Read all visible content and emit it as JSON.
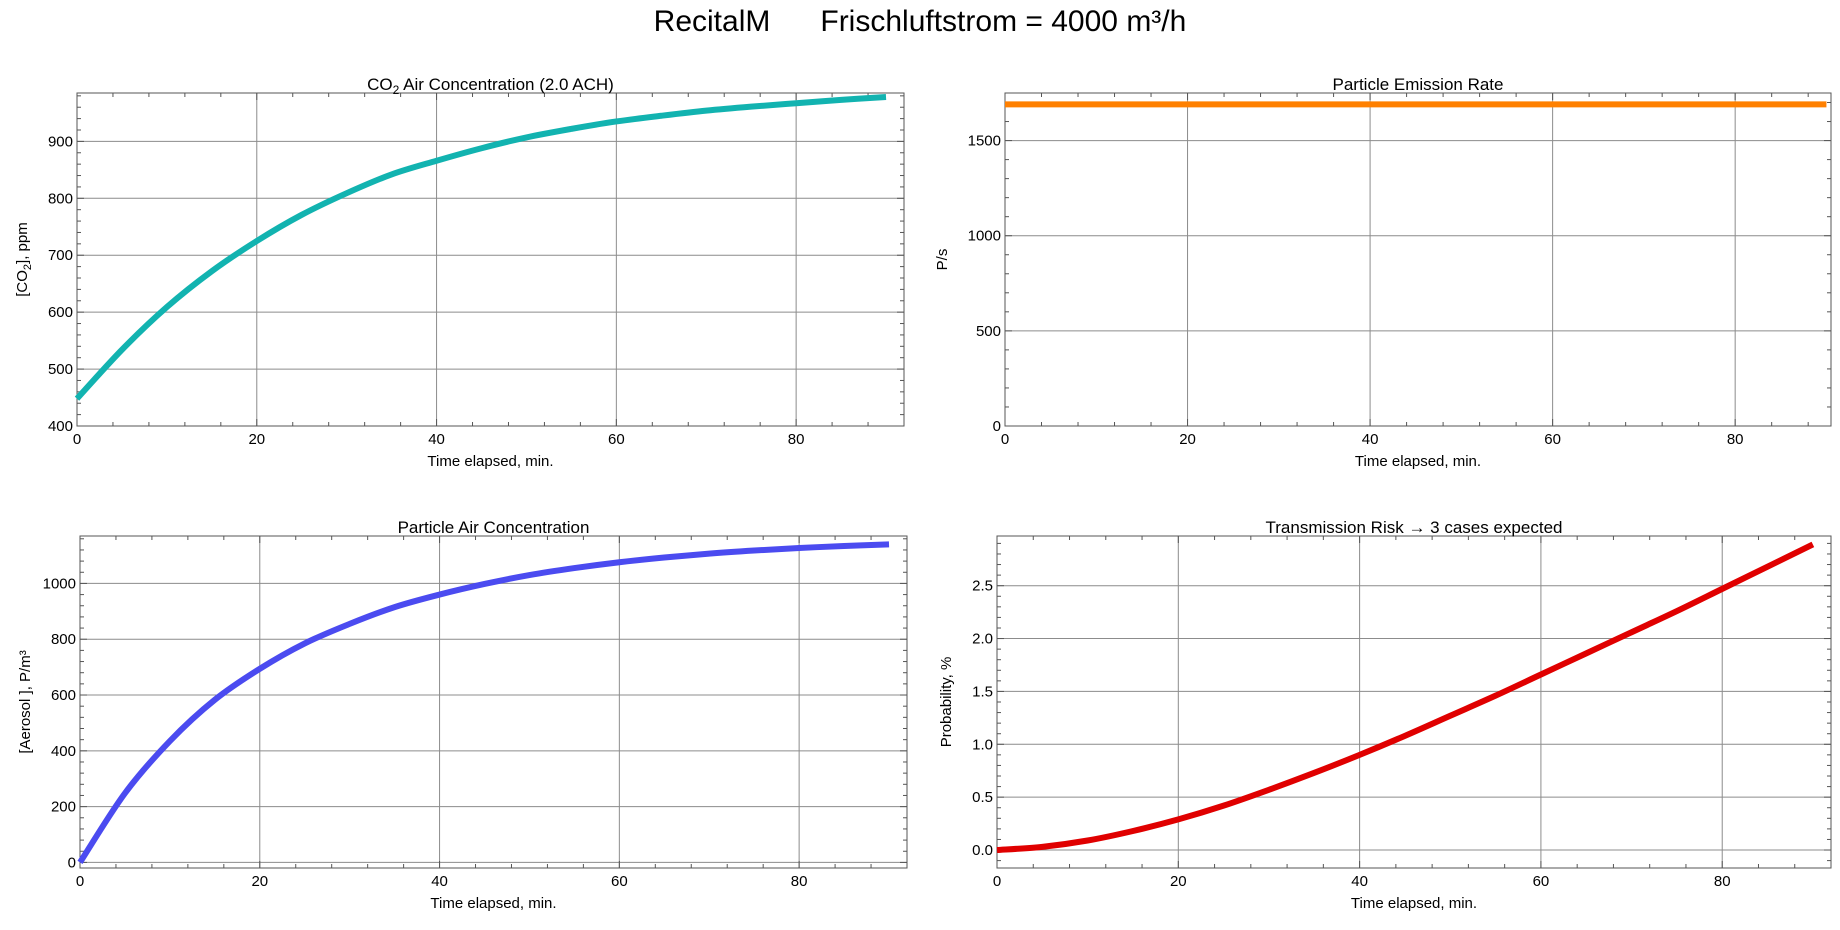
{
  "page": {
    "title": "RecitalM      Frischluftstrom = 4000 m³/h"
  },
  "chart_data": [
    {
      "id": "co2",
      "type": "line",
      "title_main": "CO",
      "title_sub": "2",
      "title_rest": " Air Concentration    (2.0 ACH)",
      "xlabel": "Time elapsed,  min.",
      "ylabel_main": "[CO",
      "ylabel_sub": "2",
      "ylabel_rest": "], ppm",
      "xlim": [
        0,
        92
      ],
      "ylim": [
        400,
        985
      ],
      "xticks": [
        0,
        20,
        40,
        60,
        80
      ],
      "yticks": [
        400,
        500,
        600,
        700,
        800,
        900
      ],
      "ytick_labels": [
        "400",
        "500",
        "600",
        "700",
        "800",
        "900"
      ],
      "color": "#12b3b0",
      "series": [
        {
          "x": [
            0,
            5,
            10,
            15,
            20,
            25,
            30,
            35,
            40,
            45,
            50,
            55,
            60,
            65,
            70,
            75,
            80,
            85,
            90
          ],
          "values": [
            448,
            534,
            609,
            672,
            725,
            771,
            809,
            842,
            866,
            888,
            907,
            922,
            935,
            945,
            954,
            961,
            967,
            973,
            978
          ]
        }
      ]
    },
    {
      "id": "emission",
      "type": "line",
      "title_main": "Particle Emission Rate",
      "title_sub": "",
      "title_rest": "",
      "xlabel": "Time elapsed,  min.",
      "ylabel_main": "P/s",
      "ylabel_sub": "",
      "ylabel_rest": "",
      "xlim": [
        0,
        90.5
      ],
      "ylim": [
        0,
        1750
      ],
      "xticks": [
        0,
        20,
        40,
        60,
        80
      ],
      "yticks": [
        0,
        500,
        1000,
        1500
      ],
      "ytick_labels": [
        "0",
        "500",
        "1000",
        "1500"
      ],
      "color": "#ff8000",
      "series": [
        {
          "x": [
            0,
            90
          ],
          "values": [
            1690,
            1690
          ]
        }
      ]
    },
    {
      "id": "aerosol",
      "type": "line",
      "title_main": "Particle Air Concentration",
      "title_sub": "",
      "title_rest": "",
      "xlabel": "Time elapsed,  min.",
      "ylabel_main": "[Aerosol ],  P/m³",
      "ylabel_sub": "",
      "ylabel_rest": "",
      "xlim": [
        0,
        92
      ],
      "ylim": [
        -20,
        1170
      ],
      "xticks": [
        0,
        20,
        40,
        60,
        80
      ],
      "yticks": [
        0,
        200,
        400,
        600,
        800,
        1000
      ],
      "ytick_labels": [
        "0",
        "200",
        "400",
        "600",
        "800",
        "1000"
      ],
      "color": "#4b4bf0",
      "series": [
        {
          "x": [
            0,
            5,
            10,
            15,
            20,
            25,
            30,
            35,
            40,
            45,
            50,
            55,
            60,
            65,
            70,
            75,
            80,
            85,
            90
          ],
          "values": [
            0,
            248,
            435,
            583,
            694,
            785,
            855,
            915,
            960,
            998,
            1030,
            1055,
            1076,
            1093,
            1107,
            1118,
            1127,
            1134,
            1140
          ]
        }
      ]
    },
    {
      "id": "risk",
      "type": "line",
      "title_main": "Transmission Risk  →  3 cases expected",
      "title_sub": "",
      "title_rest": "",
      "xlabel": "Time elapsed,  min.",
      "ylabel_main": "Probability,  %",
      "ylabel_sub": "",
      "ylabel_rest": "",
      "xlim": [
        0,
        92
      ],
      "ylim": [
        -0.17,
        2.97
      ],
      "xticks": [
        0,
        20,
        40,
        60,
        80
      ],
      "yticks": [
        0,
        0.5,
        1,
        1.5,
        2,
        2.5
      ],
      "ytick_labels": [
        "0.0",
        "0.5",
        "1.0",
        "1.5",
        "2.0",
        "2.5"
      ],
      "color": "#e00000",
      "series": [
        {
          "x": [
            0,
            5,
            10,
            15,
            20,
            25,
            30,
            35,
            40,
            45,
            50,
            55,
            60,
            65,
            70,
            75,
            80,
            85,
            90
          ],
          "values": [
            0,
            0.03,
            0.09,
            0.18,
            0.29,
            0.42,
            0.57,
            0.73,
            0.9,
            1.08,
            1.27,
            1.46,
            1.66,
            1.86,
            2.06,
            2.26,
            2.47,
            2.68,
            2.89
          ]
        }
      ]
    }
  ]
}
